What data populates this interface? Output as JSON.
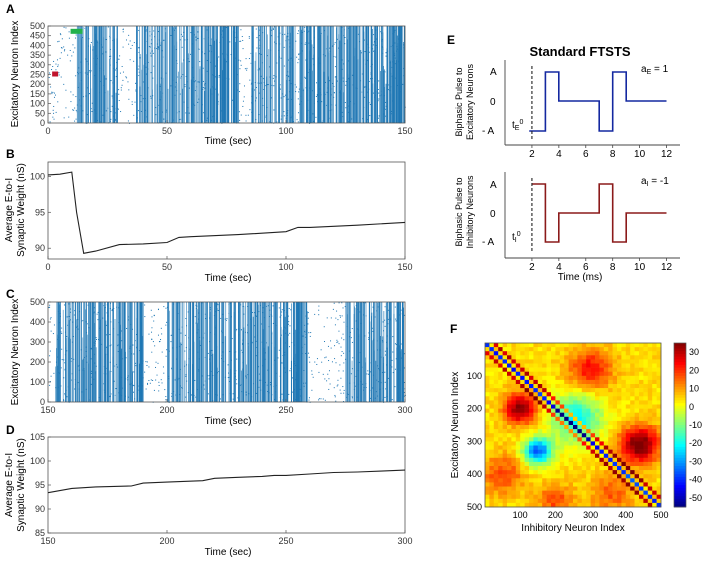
{
  "panels": {
    "A": {
      "letter": "A",
      "ylabel": "Excitatory Neuron Index",
      "xlabel": "Time (sec)"
    },
    "B": {
      "letter": "B",
      "ylabel_line1": "Average E-to-I",
      "ylabel_line2": "Synaptic Weight (nS)",
      "xlabel": "Time (sec)"
    },
    "C": {
      "letter": "C",
      "ylabel": "Excitatory Neuron Index",
      "xlabel": "Time (sec)"
    },
    "D": {
      "letter": "D",
      "ylabel_line1": "Average E-to-I",
      "ylabel_line2": "Synaptic Weight (nS)",
      "xlabel": "Time (sec)"
    },
    "E": {
      "letter": "E",
      "title": "Standard FTSTS",
      "top_ylabel_line1": "Biphasic Pulse to",
      "top_ylabel_line2": "Excitatory Neurons",
      "bottom_ylabel_line1": "Biphasic Pulse to",
      "bottom_ylabel_line2": "Inhibitory Neurons",
      "y_tick_A": "A",
      "y_tick_0": "0",
      "y_tick_negA": "- A",
      "a_E_label": "aE = 1",
      "a_I_label": "aI = -1",
      "t_E_label": "tE0",
      "t_I_label": "tI0",
      "xlabel": "Time (ms)"
    },
    "F": {
      "letter": "F",
      "ylabel": "Excitatory Neuron Index",
      "xlabel": "Inhibitory Neuron Index"
    }
  },
  "chart_data": [
    {
      "id": "A",
      "type": "raster",
      "xlim": [
        0,
        150
      ],
      "ylim": [
        0,
        500
      ],
      "xticks": [
        0,
        50,
        100,
        150
      ],
      "yticks": [
        0,
        50,
        100,
        150,
        200,
        250,
        300,
        350,
        400,
        450,
        500
      ],
      "color": "#1f77b4",
      "markers": [
        {
          "name": "stim-marker-red",
          "color": "#c0142c",
          "time": 3,
          "neuron": 250
        },
        {
          "name": "stim-marker-green",
          "color": "#22b14c",
          "time": 12,
          "neuron": 470
        }
      ],
      "dense_blocks": [
        [
          12,
          30
        ],
        [
          37,
          80
        ],
        [
          85,
          150
        ]
      ]
    },
    {
      "id": "B",
      "type": "line",
      "xlim": [
        0,
        150
      ],
      "ylim": [
        88.5,
        102
      ],
      "xticks": [
        0,
        50,
        100,
        150
      ],
      "yticks": [
        90,
        95,
        100
      ],
      "x": [
        0,
        5,
        10,
        12,
        15,
        20,
        30,
        40,
        50,
        55,
        60,
        80,
        100,
        105,
        110,
        130,
        150
      ],
      "y": [
        100.2,
        100.3,
        100.6,
        95,
        89.3,
        89.6,
        90.5,
        90.6,
        90.8,
        91.5,
        91.6,
        91.9,
        92.3,
        92.9,
        92.9,
        93.2,
        93.6
      ]
    },
    {
      "id": "C",
      "type": "raster",
      "xlim": [
        150,
        300
      ],
      "ylim": [
        0,
        500
      ],
      "xticks": [
        150,
        200,
        250,
        300
      ],
      "yticks": [
        0,
        100,
        200,
        300,
        400,
        500
      ],
      "color": "#1f77b4",
      "dense_blocks": [
        [
          153,
          190
        ],
        [
          200,
          259
        ],
        [
          275,
          300
        ]
      ]
    },
    {
      "id": "D",
      "type": "line",
      "xlim": [
        150,
        300
      ],
      "ylim": [
        85,
        105
      ],
      "xticks": [
        150,
        200,
        250,
        300
      ],
      "yticks": [
        85,
        90,
        95,
        100,
        105
      ],
      "x": [
        150,
        160,
        170,
        185,
        190,
        200,
        215,
        220,
        230,
        240,
        245,
        250,
        260,
        270,
        280,
        290,
        300
      ],
      "y": [
        93.4,
        94.3,
        94.6,
        94.8,
        95.4,
        95.6,
        95.9,
        96.4,
        96.6,
        96.8,
        97.0,
        97.0,
        97.3,
        97.6,
        97.7,
        97.9,
        98.1
      ]
    },
    {
      "id": "E",
      "type": "line",
      "xlim": [
        0,
        13
      ],
      "xticks": [
        2,
        4,
        6,
        8,
        10,
        12
      ],
      "ylevels": [
        "- A",
        "0",
        "A"
      ],
      "series": [
        {
          "name": "excitatory",
          "color": "#1428a0",
          "x": [
            1.8,
            2,
            2,
            3,
            3,
            4,
            4,
            7,
            7,
            8,
            8,
            9,
            9,
            12
          ],
          "y": [
            -1,
            -1,
            -1,
            -1,
            1,
            1,
            0,
            0,
            -1,
            -1,
            1,
            1,
            0,
            0
          ]
        },
        {
          "name": "inhibitory",
          "color": "#8b1a1a",
          "x": [
            2,
            3,
            3,
            4,
            4,
            7,
            7,
            8,
            8,
            9,
            9,
            12
          ],
          "y": [
            1,
            1,
            -1,
            -1,
            0,
            0,
            1,
            1,
            -1,
            -1,
            0,
            0
          ]
        }
      ],
      "t0_x": 2
    },
    {
      "id": "F",
      "type": "heatmap",
      "xlim": [
        0,
        500
      ],
      "ylim": [
        500,
        0
      ],
      "xticks": [
        100,
        200,
        300,
        400,
        500
      ],
      "yticks": [
        100,
        200,
        300,
        400,
        500
      ],
      "colorbar_ticks": [
        30,
        20,
        10,
        0,
        -10,
        -20,
        -30,
        -40,
        -50
      ],
      "clim": [
        -55,
        35
      ],
      "blobs": [
        {
          "x": 100,
          "y": 200,
          "v": 32,
          "r": 45
        },
        {
          "x": 440,
          "y": 310,
          "v": 34,
          "r": 55
        },
        {
          "x": 300,
          "y": 80,
          "v": 20,
          "r": 60
        },
        {
          "x": 50,
          "y": 400,
          "v": 14,
          "r": 60
        },
        {
          "x": 150,
          "y": 330,
          "v": -40,
          "r": 40
        },
        {
          "x": 260,
          "y": 230,
          "v": -25,
          "r": 70
        },
        {
          "x": 360,
          "y": 460,
          "v": 12,
          "r": 60
        },
        {
          "x": 200,
          "y": 480,
          "v": 14,
          "r": 50
        }
      ]
    }
  ]
}
